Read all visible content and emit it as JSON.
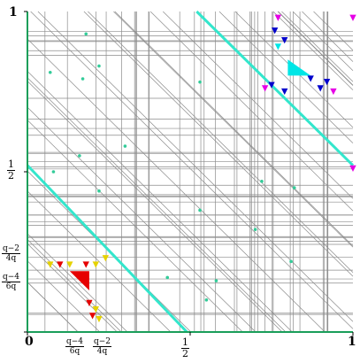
{
  "labels": {
    "y_top": "1",
    "y_half": {
      "num": "1",
      "den": "2"
    },
    "y_q2": {
      "num": "q−2",
      "den": "4q"
    },
    "y_q4": {
      "num": "q−4",
      "den": "6q"
    },
    "x_zero": "0",
    "x_q4": {
      "num": "q−4",
      "den": "6q"
    },
    "x_q2": {
      "num": "q−2",
      "den": "4q"
    },
    "x_half": {
      "num": "1",
      "den": "2"
    },
    "x_one": "1"
  },
  "colors": {
    "grid_line": "#8c8c8c",
    "diagonal_band": "#33e6cc",
    "axis": "#1a9e5a",
    "red": "#e60000",
    "yellow": "#e6d200",
    "blue": "#0000cc",
    "cyan": "#00e6e6",
    "magenta": "#e600e6",
    "teal_dot": "#33cc99"
  }
}
